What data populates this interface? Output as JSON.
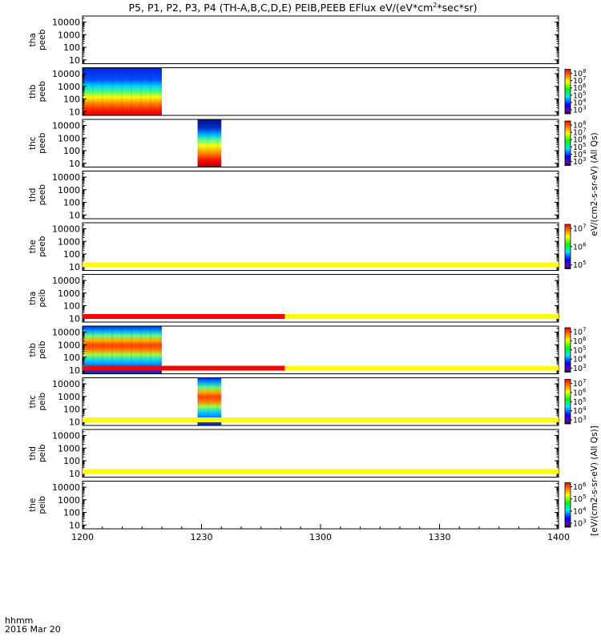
{
  "title": "P5, P1, P2, P3, P4 (TH-A,B,C,D,E) PEIB,PEEB EFlux eV/(eV*cm²*sec*sr)",
  "title_parts": {
    "main": "P5, P1, P2, P3, P4 (TH-A,B,C,D,E) PEIB,PEEB EFlux eV/(eV*cm",
    "sup": "2",
    "tail": "*sec*sr)"
  },
  "time_axis": {
    "corner_label": "hhmm",
    "date_label": "2016 Mar 20",
    "ticks": [
      "1200",
      "1230",
      "1300",
      "1330",
      "1400"
    ],
    "range_min": [
      0,
      120
    ]
  },
  "colorbar_labels": {
    "peeb": "eV/(cm2-s-sr-eV) (All Qs)",
    "peib": "[eV/(cm2-s-sr-eV) (All Qs)]"
  },
  "colors": {
    "yellow": "#ffff00",
    "red": "#ff0000",
    "black": "#000000"
  },
  "chart_data": {
    "type": "heatmap",
    "y_scale": "log",
    "y_ticks": [
      "10",
      "100",
      "1000",
      "10000"
    ],
    "y_range": [
      5,
      30000
    ],
    "panels": [
      {
        "probe": "tha",
        "product": "peeb",
        "data_spans": []
      },
      {
        "probe": "thb",
        "product": "peeb",
        "data_spans": [
          [
            0,
            20
          ]
        ],
        "colorbar": {
          "exp": [
            8,
            7,
            6,
            5,
            4,
            3
          ]
        }
      },
      {
        "probe": "thc",
        "product": "peeb",
        "data_spans": [
          [
            29,
            35
          ]
        ],
        "colorbar": {
          "exp": [
            8,
            7,
            6,
            5,
            4,
            3
          ]
        }
      },
      {
        "probe": "thd",
        "product": "peeb",
        "data_spans": []
      },
      {
        "probe": "the",
        "product": "peeb",
        "data_spans": [],
        "colorbar": {
          "exp": [
            7,
            6,
            5
          ]
        }
      },
      {
        "probe": "tha",
        "product": "peib",
        "data_spans": []
      },
      {
        "probe": "thb",
        "product": "peib",
        "data_spans": [
          [
            0,
            20
          ]
        ],
        "colorbar": {
          "exp": [
            7,
            6,
            5,
            4,
            3
          ]
        }
      },
      {
        "probe": "thc",
        "product": "peib",
        "data_spans": [
          [
            29,
            35
          ]
        ],
        "colorbar": {
          "exp": [
            7,
            6,
            5,
            4,
            3
          ]
        }
      },
      {
        "probe": "thd",
        "product": "peib",
        "data_spans": []
      },
      {
        "probe": "the",
        "product": "peib",
        "data_spans": [],
        "colorbar": {
          "exp": [
            6,
            5,
            4,
            3
          ]
        }
      }
    ],
    "status_bars": [
      {
        "below_panel": 4,
        "segments": [
          {
            "t": [
              0,
              120
            ],
            "color": "yellow"
          }
        ]
      },
      {
        "below_panel": 5,
        "segments": [
          {
            "t": [
              0,
              51
            ],
            "color": "red"
          },
          {
            "t": [
              51,
              120
            ],
            "color": "yellow"
          }
        ]
      },
      {
        "below_panel": 6,
        "segments": [
          {
            "t": [
              0,
              51
            ],
            "color": "red"
          },
          {
            "t": [
              51,
              120
            ],
            "color": "yellow"
          }
        ]
      },
      {
        "below_panel": 7,
        "segments": [
          {
            "t": [
              0,
              120
            ],
            "color": "yellow"
          }
        ]
      },
      {
        "below_panel": 8,
        "segments": [
          {
            "t": [
              0,
              120
            ],
            "color": "yellow"
          }
        ]
      }
    ]
  }
}
